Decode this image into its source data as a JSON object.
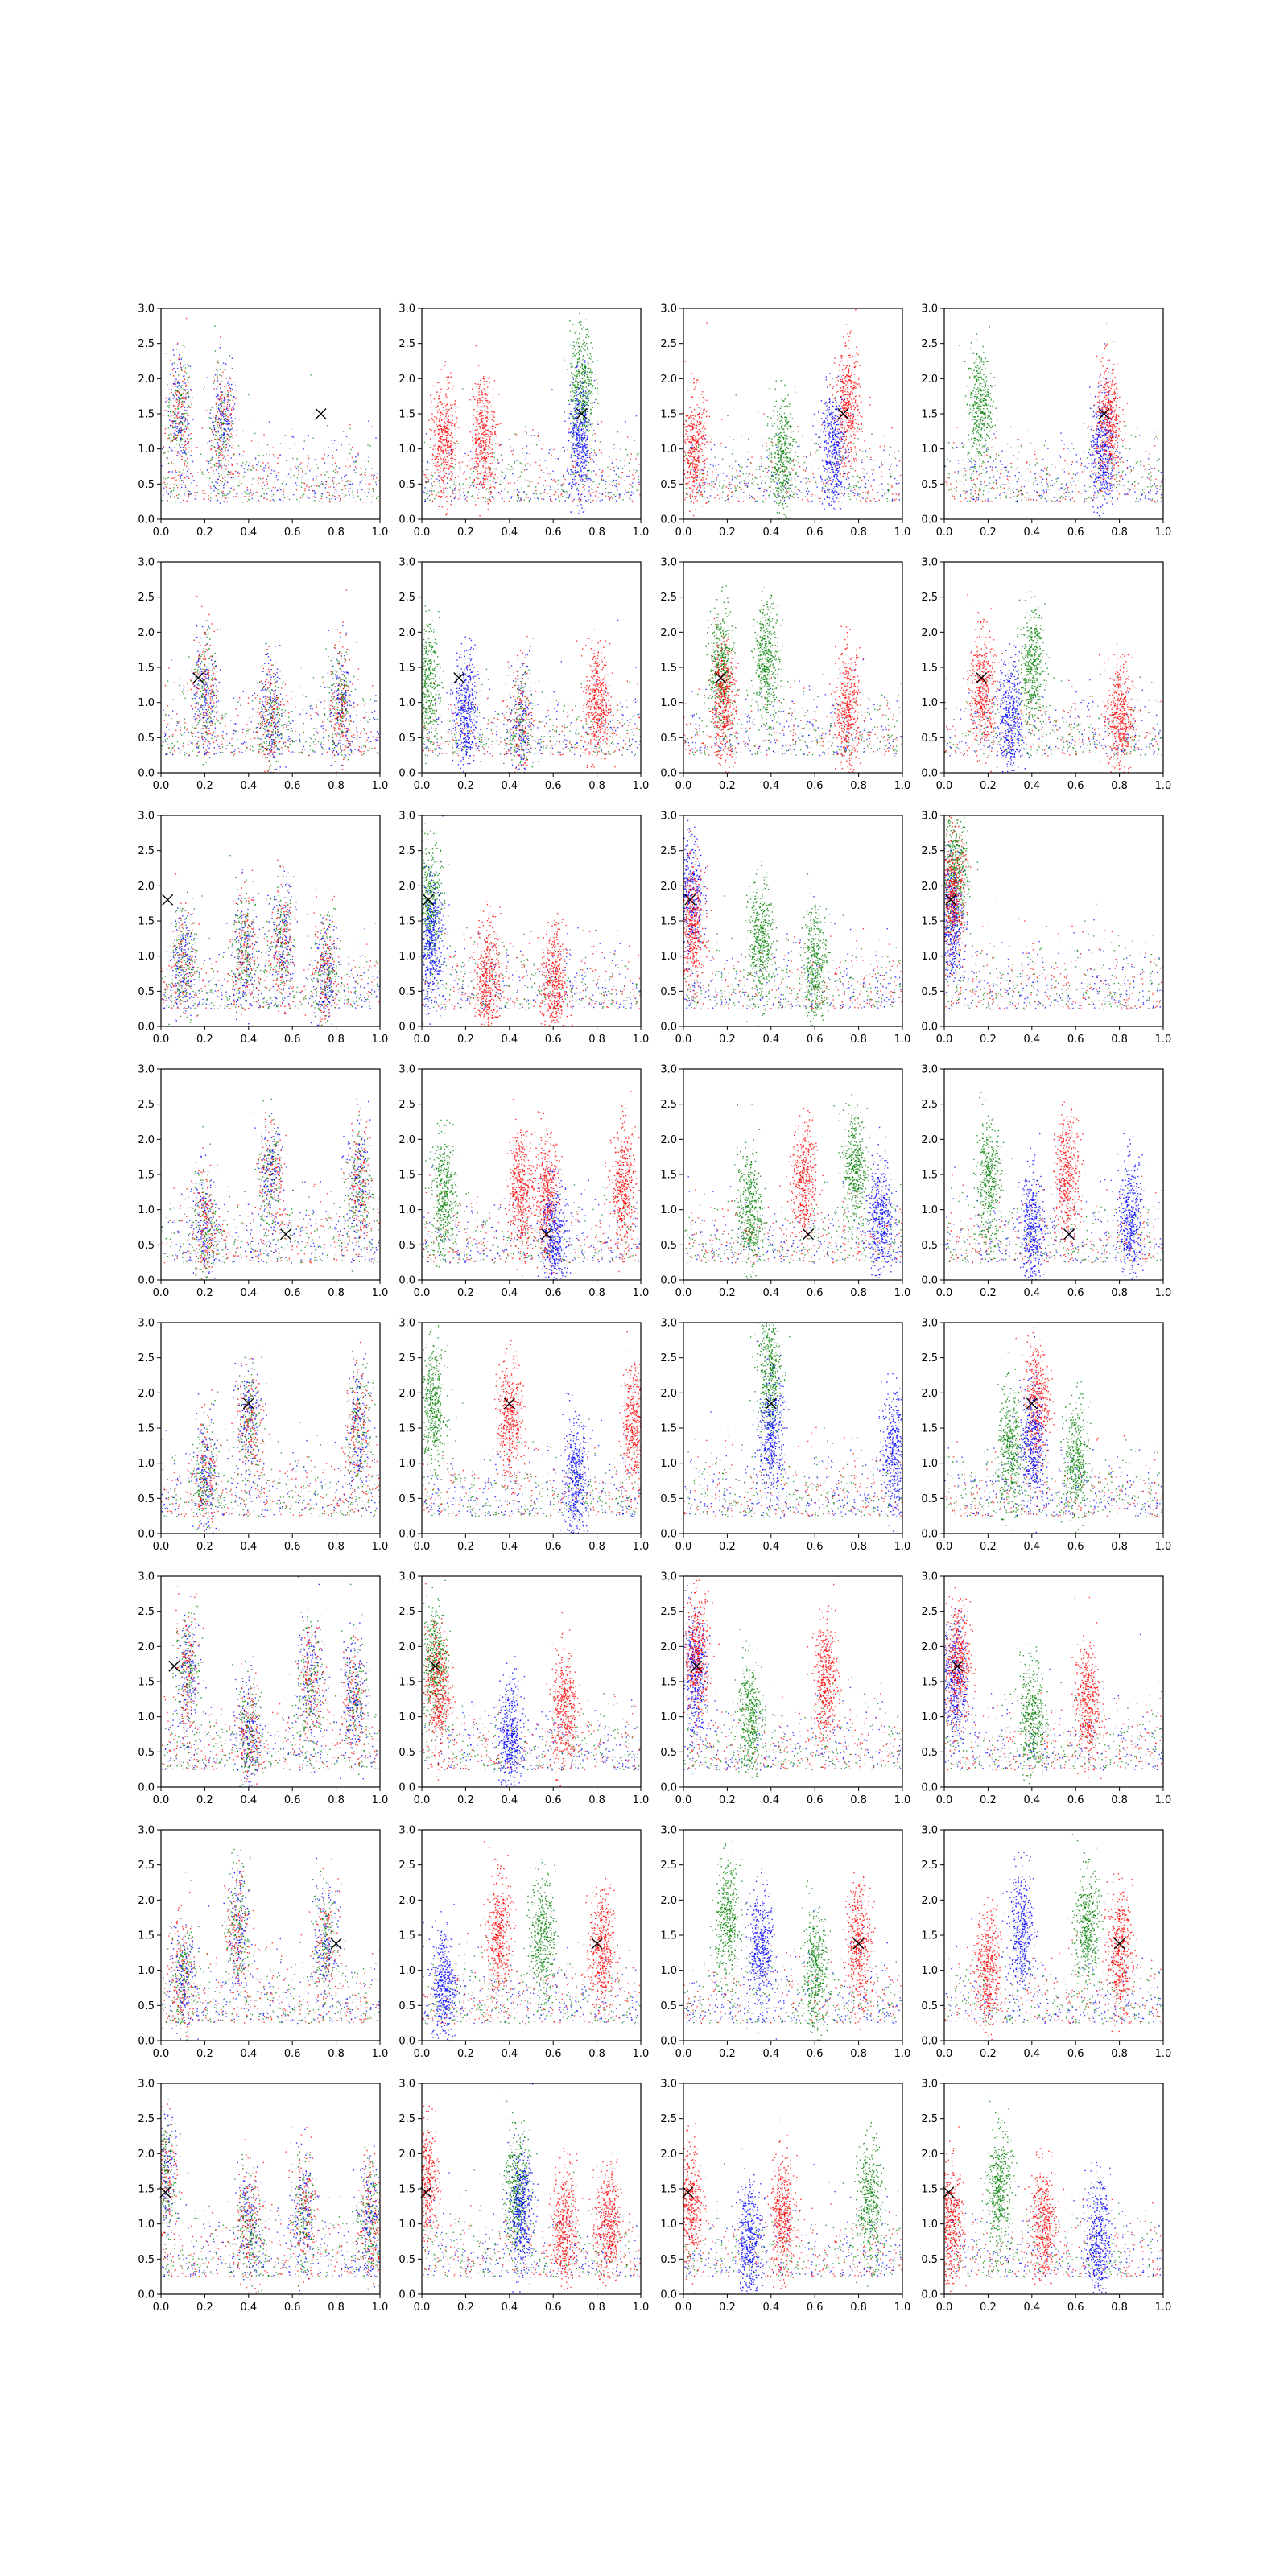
{
  "chart_data": {
    "type": "scatter",
    "grid": false,
    "legend": "none",
    "layout": {
      "rows": 8,
      "cols": 4
    },
    "xlim": [
      0,
      1
    ],
    "ylim": [
      0,
      3
    ],
    "x_ticks": [
      "0.0",
      "0.2",
      "0.4",
      "0.6",
      "0.8",
      "1.0"
    ],
    "y_ticks": [
      "0.0",
      "0.5",
      "1.0",
      "1.5",
      "2.0",
      "2.5",
      "3.0"
    ],
    "series_colors": {
      "blue": "#0000ff",
      "green": "#008000",
      "red": "#ff0000"
    },
    "marker_color": "#000000",
    "rows": [
      {
        "marker": [
          0.73,
          1.5
        ],
        "panels": [
          {
            "clusters": [
              [
                0.08,
                1.5,
                "mix"
              ],
              [
                0.28,
                1.35,
                "mix"
              ]
            ]
          },
          {
            "clusters": [
              [
                0.73,
                1.9,
                "green"
              ],
              [
                0.72,
                1.1,
                "blue"
              ],
              [
                0.1,
                1.1,
                "red"
              ],
              [
                0.28,
                1.2,
                "red"
              ]
            ]
          },
          {
            "clusters": [
              [
                0.75,
                1.6,
                "red"
              ],
              [
                0.68,
                1.0,
                "blue"
              ],
              [
                0.05,
                1.0,
                "red"
              ],
              [
                0.45,
                0.9,
                "green"
              ]
            ]
          },
          {
            "clusters": [
              [
                0.16,
                1.6,
                "green"
              ],
              [
                0.72,
                1.0,
                "blue"
              ],
              [
                0.75,
                1.4,
                "red"
              ]
            ]
          }
        ]
      },
      {
        "marker": [
          0.17,
          1.35
        ],
        "panels": [
          {
            "clusters": [
              [
                0.2,
                1.2,
                "mix"
              ],
              [
                0.82,
                1.0,
                "mix"
              ],
              [
                0.5,
                0.8,
                "mix"
              ]
            ]
          },
          {
            "clusters": [
              [
                0.02,
                1.3,
                "green"
              ],
              [
                0.2,
                0.9,
                "blue"
              ],
              [
                0.8,
                1.0,
                "red"
              ],
              [
                0.45,
                0.7,
                "mix"
              ]
            ]
          },
          {
            "clusters": [
              [
                0.17,
                1.5,
                "green"
              ],
              [
                0.38,
                1.6,
                "green"
              ],
              [
                0.18,
                1.0,
                "red"
              ],
              [
                0.75,
                0.9,
                "red"
              ]
            ]
          },
          {
            "clusters": [
              [
                0.17,
                1.2,
                "red"
              ],
              [
                0.4,
                1.5,
                "green"
              ],
              [
                0.3,
                0.8,
                "blue"
              ],
              [
                0.8,
                0.8,
                "red"
              ]
            ]
          }
        ]
      },
      {
        "marker": [
          0.03,
          1.8
        ],
        "panels": [
          {
            "clusters": [
              [
                0.38,
                1.1,
                "mix"
              ],
              [
                0.55,
                1.2,
                "mix"
              ],
              [
                0.1,
                0.9,
                "mix"
              ],
              [
                0.75,
                0.8,
                "mix"
              ]
            ]
          },
          {
            "clusters": [
              [
                0.03,
                1.8,
                "green"
              ],
              [
                0.04,
                1.2,
                "blue"
              ],
              [
                0.3,
                0.7,
                "red"
              ],
              [
                0.6,
                0.6,
                "red"
              ]
            ]
          },
          {
            "clusters": [
              [
                0.03,
                1.9,
                "blue"
              ],
              [
                0.04,
                1.4,
                "red"
              ],
              [
                0.35,
                1.2,
                "green"
              ],
              [
                0.6,
                0.9,
                "green"
              ]
            ]
          },
          {
            "clusters": [
              [
                0.05,
                2.2,
                "green"
              ],
              [
                0.03,
                1.5,
                "blue"
              ],
              [
                0.04,
                1.9,
                "red"
              ]
            ]
          }
        ]
      },
      {
        "marker": [
          0.57,
          0.65
        ],
        "panels": [
          {
            "clusters": [
              [
                0.5,
                1.5,
                "mix"
              ],
              [
                0.9,
                1.4,
                "mix"
              ],
              [
                0.2,
                0.8,
                "mix"
              ]
            ]
          },
          {
            "clusters": [
              [
                0.45,
                1.3,
                "red"
              ],
              [
                0.57,
                1.2,
                "red"
              ],
              [
                0.92,
                1.3,
                "red"
              ],
              [
                0.1,
                1.2,
                "green"
              ],
              [
                0.6,
                0.6,
                "blue"
              ]
            ]
          },
          {
            "clusters": [
              [
                0.55,
                1.4,
                "red"
              ],
              [
                0.78,
                1.6,
                "green"
              ],
              [
                0.3,
                1.0,
                "green"
              ],
              [
                0.9,
                0.9,
                "blue"
              ]
            ]
          },
          {
            "clusters": [
              [
                0.56,
                1.5,
                "red"
              ],
              [
                0.2,
                1.4,
                "green"
              ],
              [
                0.85,
                0.9,
                "blue"
              ],
              [
                0.4,
                0.7,
                "blue"
              ]
            ]
          }
        ]
      },
      {
        "marker": [
          0.4,
          1.85
        ],
        "panels": [
          {
            "clusters": [
              [
                0.4,
                1.6,
                "mix"
              ],
              [
                0.9,
                1.5,
                "mix"
              ],
              [
                0.2,
                0.8,
                "mix"
              ]
            ]
          },
          {
            "clusters": [
              [
                0.05,
                1.8,
                "green"
              ],
              [
                0.4,
                1.6,
                "red"
              ],
              [
                0.97,
                1.6,
                "red"
              ],
              [
                0.7,
                0.8,
                "blue"
              ]
            ]
          },
          {
            "clusters": [
              [
                0.39,
                2.3,
                "green"
              ],
              [
                0.4,
                1.4,
                "blue"
              ],
              [
                0.96,
                1.2,
                "blue"
              ]
            ]
          },
          {
            "clusters": [
              [
                0.42,
                1.9,
                "red"
              ],
              [
                0.4,
                1.3,
                "blue"
              ],
              [
                0.3,
                1.2,
                "green"
              ],
              [
                0.6,
                1.0,
                "green"
              ]
            ]
          }
        ]
      },
      {
        "marker": [
          0.06,
          1.72
        ],
        "panels": [
          {
            "clusters": [
              [
                0.12,
                1.7,
                "mix"
              ],
              [
                0.68,
                1.5,
                "mix"
              ],
              [
                0.88,
                1.3,
                "mix"
              ],
              [
                0.4,
                0.7,
                "mix"
              ]
            ]
          },
          {
            "clusters": [
              [
                0.06,
                1.8,
                "green"
              ],
              [
                0.07,
                1.4,
                "red"
              ],
              [
                0.65,
                1.1,
                "red"
              ],
              [
                0.4,
                0.7,
                "blue"
              ]
            ]
          },
          {
            "clusters": [
              [
                0.05,
                1.6,
                "blue"
              ],
              [
                0.06,
                1.9,
                "red"
              ],
              [
                0.65,
                1.5,
                "red"
              ],
              [
                0.3,
                1.0,
                "green"
              ]
            ]
          },
          {
            "clusters": [
              [
                0.05,
                1.5,
                "blue"
              ],
              [
                0.06,
                1.8,
                "red"
              ],
              [
                0.65,
                1.2,
                "red"
              ],
              [
                0.4,
                1.0,
                "green"
              ]
            ]
          }
        ]
      },
      {
        "marker": [
          0.8,
          1.38
        ],
        "panels": [
          {
            "clusters": [
              [
                0.35,
                1.6,
                "mix"
              ],
              [
                0.75,
                1.4,
                "mix"
              ],
              [
                0.1,
                0.9,
                "mix"
              ]
            ]
          },
          {
            "clusters": [
              [
                0.35,
                1.5,
                "red"
              ],
              [
                0.55,
                1.5,
                "green"
              ],
              [
                0.82,
                1.3,
                "red"
              ],
              [
                0.1,
                0.8,
                "blue"
              ]
            ]
          },
          {
            "clusters": [
              [
                0.2,
                1.7,
                "green"
              ],
              [
                0.35,
                1.3,
                "blue"
              ],
              [
                0.8,
                1.4,
                "red"
              ],
              [
                0.6,
                1.0,
                "green"
              ]
            ]
          },
          {
            "clusters": [
              [
                0.35,
                1.6,
                "blue"
              ],
              [
                0.65,
                1.6,
                "green"
              ],
              [
                0.8,
                1.3,
                "red"
              ],
              [
                0.2,
                1.0,
                "red"
              ]
            ]
          }
        ]
      },
      {
        "marker": [
          0.02,
          1.45
        ],
        "panels": [
          {
            "clusters": [
              [
                0.02,
                1.7,
                "mix"
              ],
              [
                0.4,
                1.0,
                "mix"
              ],
              [
                0.65,
                1.2,
                "mix"
              ],
              [
                0.95,
                1.1,
                "mix"
              ]
            ]
          },
          {
            "clusters": [
              [
                0.02,
                1.6,
                "red"
              ],
              [
                0.43,
                1.5,
                "green"
              ],
              [
                0.45,
                1.2,
                "blue"
              ],
              [
                0.65,
                1.0,
                "red"
              ],
              [
                0.85,
                1.0,
                "red"
              ]
            ]
          },
          {
            "clusters": [
              [
                0.03,
                1.3,
                "red"
              ],
              [
                0.45,
                1.1,
                "red"
              ],
              [
                0.85,
                1.3,
                "green"
              ],
              [
                0.3,
                0.8,
                "blue"
              ]
            ]
          },
          {
            "clusters": [
              [
                0.03,
                1.0,
                "red"
              ],
              [
                0.45,
                1.0,
                "red"
              ],
              [
                0.25,
                1.5,
                "green"
              ],
              [
                0.7,
                0.8,
                "blue"
              ]
            ]
          }
        ]
      }
    ]
  }
}
